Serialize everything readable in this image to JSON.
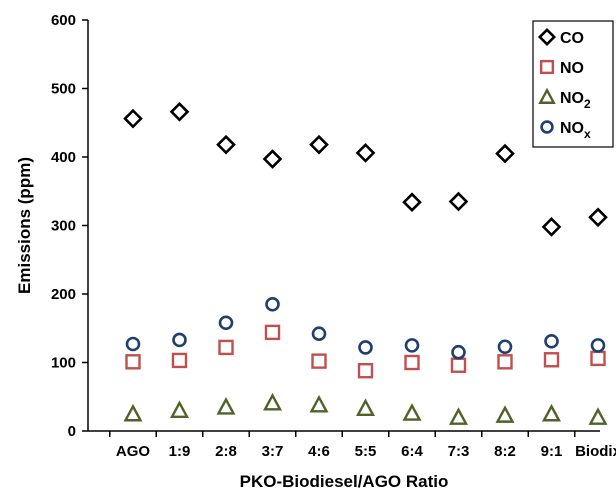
{
  "chart_data": {
    "type": "scatter",
    "title": "",
    "xlabel": "PKO-Biodiesel/AGO Ratio",
    "ylabel": "Emissions (ppm)",
    "ylim": [
      0,
      600
    ],
    "yticks": [
      "0",
      "100",
      "200",
      "300",
      "400",
      "500",
      "600"
    ],
    "categories": [
      "AGO",
      "1:9",
      "2:8",
      "3:7",
      "4:6",
      "5:5",
      "6:4",
      "7:3",
      "8:2",
      "9:1",
      "Biodix"
    ],
    "grid": false,
    "legend_position": "top-right",
    "series": [
      {
        "key": "co",
        "name": "CO",
        "legend_base": "CO",
        "legend_sub": "",
        "marker": "diamond",
        "color": "#000000",
        "values": [
          456,
          466,
          418,
          397,
          418,
          406,
          334,
          335,
          405,
          298,
          312
        ]
      },
      {
        "key": "no",
        "name": "NO",
        "legend_base": "NO",
        "legend_sub": "",
        "marker": "square",
        "color": "#c0504d",
        "values": [
          101,
          103,
          122,
          144,
          102,
          88,
          100,
          96,
          101,
          104,
          106
        ]
      },
      {
        "key": "no2",
        "name": "NO2",
        "legend_base": "NO",
        "legend_sub": "2",
        "marker": "triangle",
        "color": "#4f6228",
        "values": [
          25,
          30,
          35,
          41,
          38,
          33,
          26,
          20,
          23,
          25,
          20
        ]
      },
      {
        "key": "nox",
        "name": "NOx",
        "legend_base": "NO",
        "legend_sub": "x",
        "marker": "circle",
        "color": "#1f3f6e",
        "values": [
          127,
          133,
          158,
          185,
          142,
          122,
          125,
          115,
          123,
          131,
          125
        ]
      }
    ]
  }
}
